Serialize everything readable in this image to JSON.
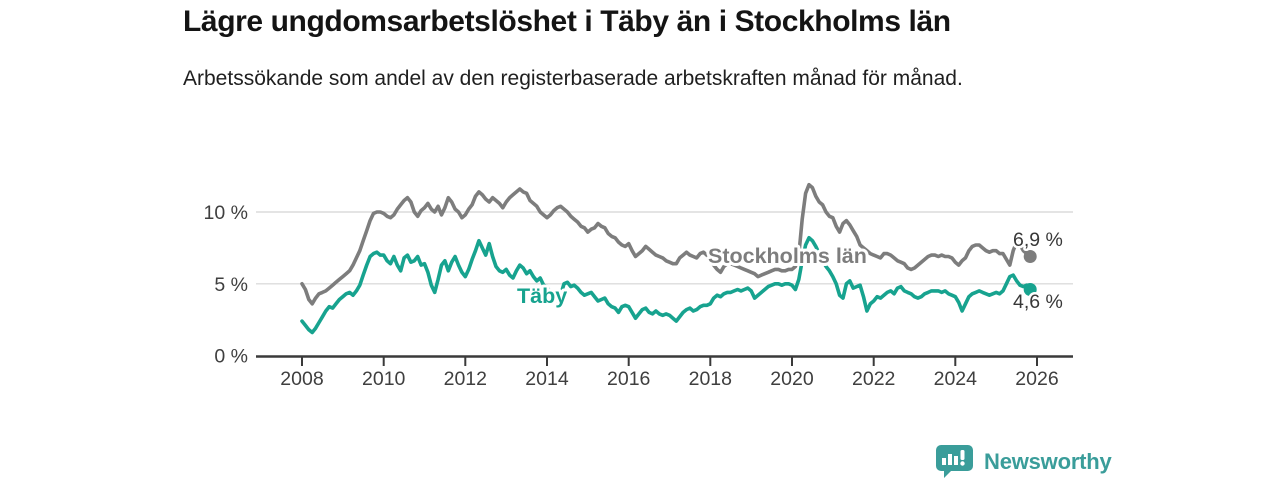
{
  "header": {
    "title": "Lägre ungdomsarbetslöshet i Täby än i Stockholms län",
    "subtitle": "Arbetssökande som andel av den registerbaserade arbetskraften månad för månad."
  },
  "chart_data": {
    "type": "line",
    "title": "Lägre ungdomsarbetslöshet i Täby än i Stockholms län",
    "unit": "%",
    "grid": true,
    "legend_position": "inline-labels",
    "x_axis": {
      "ticks": [
        2008,
        2010,
        2012,
        2014,
        2016,
        2018,
        2020,
        2022,
        2024,
        2026
      ],
      "tick_labels": [
        "2008",
        "2010",
        "2012",
        "2014",
        "2016",
        "2018",
        "2020",
        "2022",
        "2024",
        "2026"
      ],
      "range_years": [
        2006.9,
        2026.9
      ]
    },
    "y_axis": {
      "ticks": [
        0,
        5,
        10
      ],
      "tick_labels": [
        "0 %",
        "5 %",
        "10 %"
      ],
      "range": [
        0,
        12.5
      ]
    },
    "style": {
      "grid_color": "#dcdcdc",
      "axis_color": "#3a3a3a",
      "tick_text_color": "#3f3f3f"
    },
    "series": [
      {
        "id": "stockholm",
        "name": "Stockholms län",
        "color": "#7d7d7d",
        "end_label": "6,9 %",
        "start": "2008-01",
        "interval": "monthly",
        "values": [
          5.0,
          4.6,
          3.9,
          3.6,
          4.0,
          4.3,
          4.4,
          4.5,
          4.7,
          4.9,
          5.1,
          5.3,
          5.5,
          5.7,
          5.9,
          6.3,
          6.8,
          7.3,
          8.0,
          8.7,
          9.4,
          9.9,
          10.0,
          10.0,
          9.9,
          9.7,
          9.6,
          9.8,
          10.2,
          10.5,
          10.8,
          11.0,
          10.7,
          10.0,
          9.7,
          10.1,
          10.3,
          10.6,
          10.2,
          10.0,
          10.4,
          9.8,
          10.3,
          11.0,
          10.7,
          10.2,
          10.0,
          9.6,
          9.8,
          10.2,
          10.5,
          11.1,
          11.4,
          11.2,
          10.9,
          10.7,
          11.0,
          10.8,
          10.6,
          10.3,
          10.7,
          11.0,
          11.2,
          11.4,
          11.6,
          11.4,
          11.3,
          10.8,
          10.6,
          10.4,
          10.0,
          9.8,
          9.6,
          9.8,
          10.1,
          10.3,
          10.4,
          10.2,
          10.0,
          9.7,
          9.5,
          9.3,
          9.0,
          8.9,
          8.6,
          8.8,
          8.9,
          9.2,
          9.0,
          8.9,
          8.5,
          8.3,
          8.2,
          7.9,
          7.7,
          7.6,
          7.8,
          7.3,
          6.9,
          7.1,
          7.3,
          7.6,
          7.4,
          7.2,
          7.0,
          6.9,
          6.8,
          6.6,
          6.5,
          6.4,
          6.4,
          6.8,
          7.0,
          7.2,
          7.0,
          6.9,
          6.8,
          7.1,
          7.2,
          7.0,
          6.6,
          6.3,
          6.0,
          5.8,
          6.2,
          6.4,
          6.4,
          6.3,
          6.2,
          6.1,
          6.0,
          5.9,
          5.8,
          5.7,
          5.5,
          5.6,
          5.7,
          5.8,
          5.9,
          6.0,
          6.0,
          5.9,
          5.9,
          6.0,
          6.0,
          6.2,
          7.0,
          9.5,
          11.3,
          11.9,
          11.7,
          11.1,
          10.7,
          10.5,
          10.0,
          9.7,
          9.6,
          9.0,
          8.6,
          9.2,
          9.4,
          9.1,
          8.7,
          8.3,
          7.7,
          7.5,
          7.3,
          7.1,
          7.0,
          6.9,
          6.8,
          7.1,
          7.1,
          7.0,
          6.8,
          6.6,
          6.5,
          6.4,
          6.1,
          6.0,
          6.1,
          6.3,
          6.5,
          6.7,
          6.9,
          7.0,
          7.0,
          6.9,
          7.0,
          6.9,
          6.9,
          6.8,
          6.5,
          6.3,
          6.6,
          6.8,
          7.3,
          7.6,
          7.7,
          7.7,
          7.5,
          7.3,
          7.2,
          7.3,
          7.3,
          7.1,
          7.1,
          6.7,
          6.3,
          7.3,
          7.9,
          7.7,
          7.3,
          7.1,
          6.9
        ]
      },
      {
        "id": "taby",
        "name": "Täby",
        "color": "#17a38f",
        "end_label": "4,6 %",
        "start": "2008-01",
        "interval": "monthly",
        "values": [
          2.4,
          2.1,
          1.8,
          1.6,
          1.9,
          2.3,
          2.7,
          3.1,
          3.4,
          3.3,
          3.6,
          3.9,
          4.1,
          4.3,
          4.4,
          4.2,
          4.5,
          4.9,
          5.6,
          6.3,
          6.9,
          7.1,
          7.2,
          7.0,
          7.0,
          6.6,
          6.4,
          6.9,
          6.3,
          5.9,
          6.8,
          7.0,
          6.5,
          6.6,
          6.9,
          6.3,
          6.4,
          5.8,
          4.9,
          4.4,
          5.3,
          6.3,
          6.6,
          5.9,
          6.5,
          6.9,
          6.3,
          5.8,
          5.5,
          6.0,
          6.7,
          7.3,
          8.0,
          7.5,
          7.0,
          7.8,
          6.9,
          6.2,
          5.9,
          5.8,
          6.0,
          5.6,
          5.4,
          5.9,
          6.3,
          6.1,
          5.7,
          5.9,
          5.5,
          5.2,
          5.4,
          4.9,
          4.8,
          4.4,
          3.8,
          3.5,
          4.2,
          5.0,
          5.1,
          4.8,
          4.9,
          4.7,
          4.4,
          4.2,
          4.3,
          4.4,
          4.1,
          3.8,
          3.9,
          4.0,
          3.6,
          3.4,
          3.3,
          3.0,
          3.4,
          3.5,
          3.4,
          3.0,
          2.6,
          2.9,
          3.2,
          3.3,
          3.0,
          2.9,
          3.1,
          2.9,
          2.8,
          2.9,
          2.8,
          2.6,
          2.4,
          2.7,
          3.0,
          3.2,
          3.3,
          3.1,
          3.2,
          3.4,
          3.5,
          3.5,
          3.6,
          4.0,
          4.2,
          4.1,
          4.3,
          4.4,
          4.4,
          4.5,
          4.6,
          4.5,
          4.6,
          4.7,
          4.5,
          4.0,
          4.2,
          4.4,
          4.6,
          4.8,
          4.9,
          5.0,
          5.0,
          4.9,
          5.0,
          5.0,
          4.9,
          4.6,
          5.3,
          6.6,
          7.7,
          8.2,
          8.0,
          7.6,
          7.1,
          6.6,
          6.2,
          5.9,
          5.5,
          5.0,
          4.2,
          4.0,
          5.0,
          5.2,
          4.7,
          4.8,
          4.9,
          4.1,
          3.1,
          3.6,
          3.8,
          4.1,
          4.0,
          4.2,
          4.4,
          4.5,
          4.3,
          4.7,
          4.8,
          4.5,
          4.4,
          4.3,
          4.1,
          4.0,
          4.1,
          4.3,
          4.4,
          4.5,
          4.5,
          4.5,
          4.4,
          4.5,
          4.3,
          4.2,
          4.1,
          3.7,
          3.1,
          3.6,
          4.1,
          4.3,
          4.4,
          4.5,
          4.4,
          4.3,
          4.2,
          4.3,
          4.4,
          4.3,
          4.5,
          5.0,
          5.5,
          5.6,
          5.2,
          4.9,
          4.8,
          4.9,
          4.6
        ]
      }
    ]
  },
  "footer": {
    "brand": "Newsworthy",
    "brand_color": "#3a9d9a",
    "logo_icon": "bar-chart-speech-bubble"
  }
}
